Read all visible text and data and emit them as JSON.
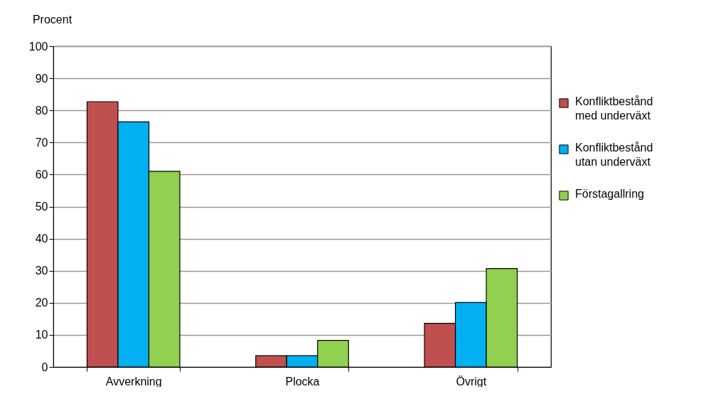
{
  "chart_data": {
    "type": "bar",
    "ylabel": "Procent",
    "categories": [
      "Avverkning",
      "Plocka",
      "Övrigt"
    ],
    "series": [
      {
        "name": "Konfliktbestånd med underväxt",
        "color": "#c0504d",
        "values": [
          82.7,
          3.5,
          13.6
        ]
      },
      {
        "name": "Konfliktbestånd utan underväxt",
        "color": "#00b0f0",
        "values": [
          76.4,
          3.5,
          20.1
        ]
      },
      {
        "name": "Förstagallring",
        "color": "#92d050",
        "values": [
          61.0,
          8.3,
          30.7
        ]
      }
    ],
    "ylim": [
      0,
      100
    ],
    "yticks": [
      0,
      10,
      20,
      30,
      40,
      50,
      60,
      70,
      80,
      90,
      100
    ],
    "grid": "y",
    "legend": "right"
  }
}
